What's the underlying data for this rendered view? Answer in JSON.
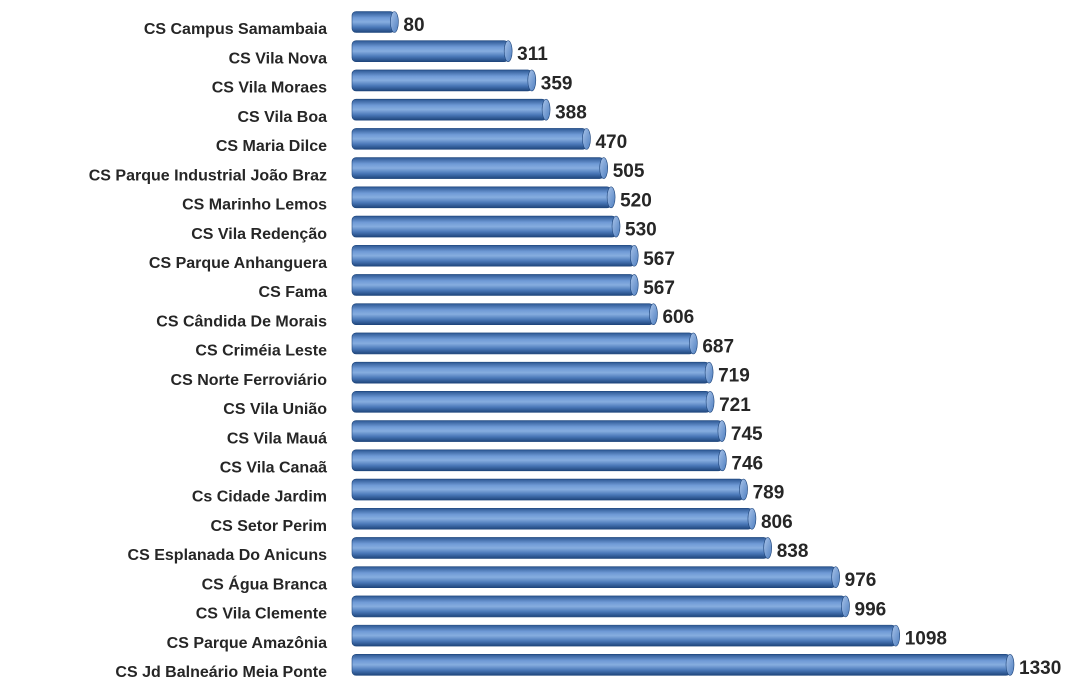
{
  "chart_data": {
    "type": "bar",
    "orientation": "horizontal",
    "color": "#4a78b8",
    "categories": [
      "CS Campus Samambaia",
      "CS Vila Nova",
      "CS Vila Moraes",
      "CS Vila Boa",
      "CS Maria Dilce",
      "CS Parque Industrial João Braz",
      "CS Marinho Lemos",
      "CS Vila Redenção",
      "CS Parque Anhanguera",
      "CS Fama",
      "CS Cândida De Morais",
      "CS Criméia Leste",
      "CS Norte Ferroviário",
      "CS Vila União",
      "CS Vila Mauá",
      "CS Vila Canaã",
      "Cs Cidade Jardim",
      "CS Setor Perim",
      "CS Esplanada Do Anicuns",
      "CS Água Branca",
      "CS Vila Clemente",
      "CS Parque Amazônia",
      "CS Jd Balneário Meia Ponte"
    ],
    "values": [
      80,
      311,
      359,
      388,
      470,
      505,
      520,
      530,
      567,
      567,
      606,
      687,
      719,
      721,
      745,
      746,
      789,
      806,
      838,
      976,
      996,
      1098,
      1330
    ]
  }
}
